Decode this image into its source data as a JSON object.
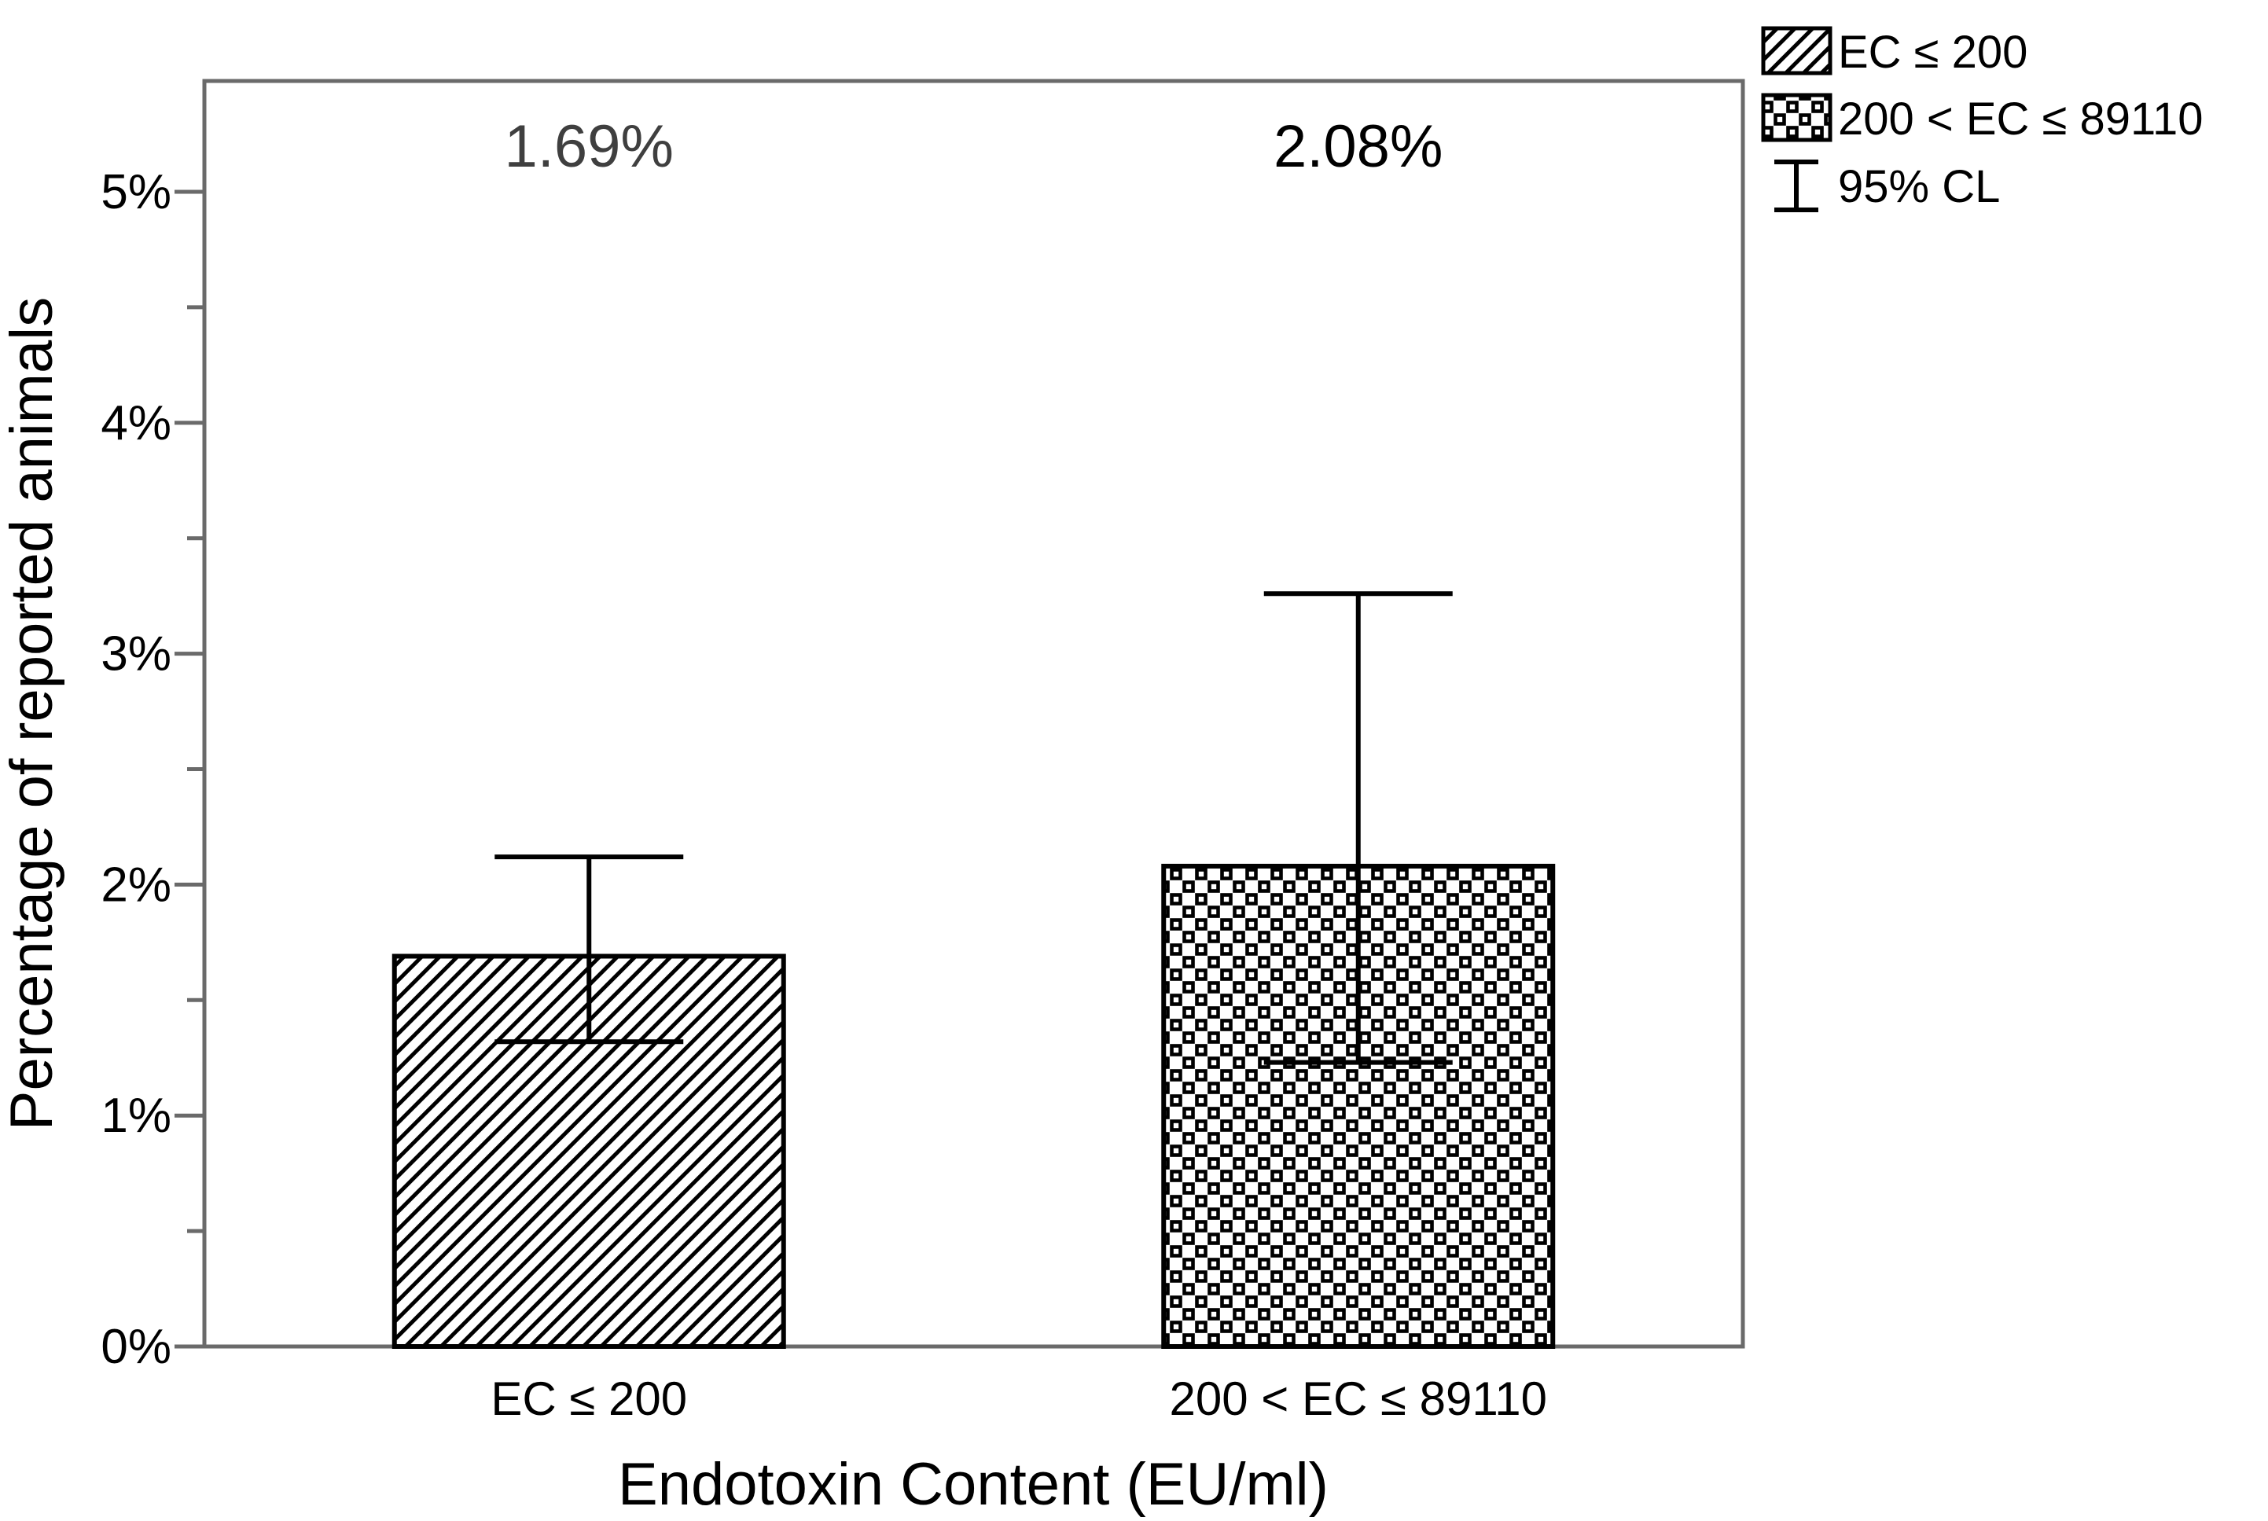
{
  "figure": {
    "background": "#ffffff",
    "axis_color": "#6a6a6a",
    "pattern_color": "#000000"
  },
  "chart_data": {
    "type": "bar",
    "title": "",
    "xlabel": "Endotoxin Content (EU/ml)",
    "ylabel": "Percentage of reported animals",
    "categories": [
      "EC ≤ 200",
      "200 < EC ≤ 89110"
    ],
    "values": [
      1.69,
      2.08
    ],
    "data_labels": [
      "1.69%",
      "2.08%"
    ],
    "data_label_colors": [
      "#3f3f3f",
      "#000000"
    ],
    "error_bars": {
      "label": "95% CL",
      "low": [
        1.32,
        1.23
      ],
      "high": [
        2.12,
        3.26
      ]
    },
    "y_ticks": [
      "0%",
      "1%",
      "2%",
      "3%",
      "4%",
      "5%"
    ],
    "y_tick_values": [
      0,
      1,
      2,
      3,
      4,
      5
    ],
    "y_minor_tick_values": [
      0.5,
      1.5,
      2.5,
      3.5,
      4.5
    ],
    "ylim": [
      0,
      5.48
    ],
    "grid": false,
    "bar_patterns": [
      "diagonal-hatch",
      "dotted"
    ],
    "legend": {
      "position": "top-right",
      "entries": [
        {
          "label": "EC ≤ 200",
          "swatch": "diagonal-hatch"
        },
        {
          "label": "200 < EC ≤ 89110",
          "swatch": "dotted"
        },
        {
          "label": "95% CL",
          "swatch": "error-bar"
        }
      ]
    }
  }
}
